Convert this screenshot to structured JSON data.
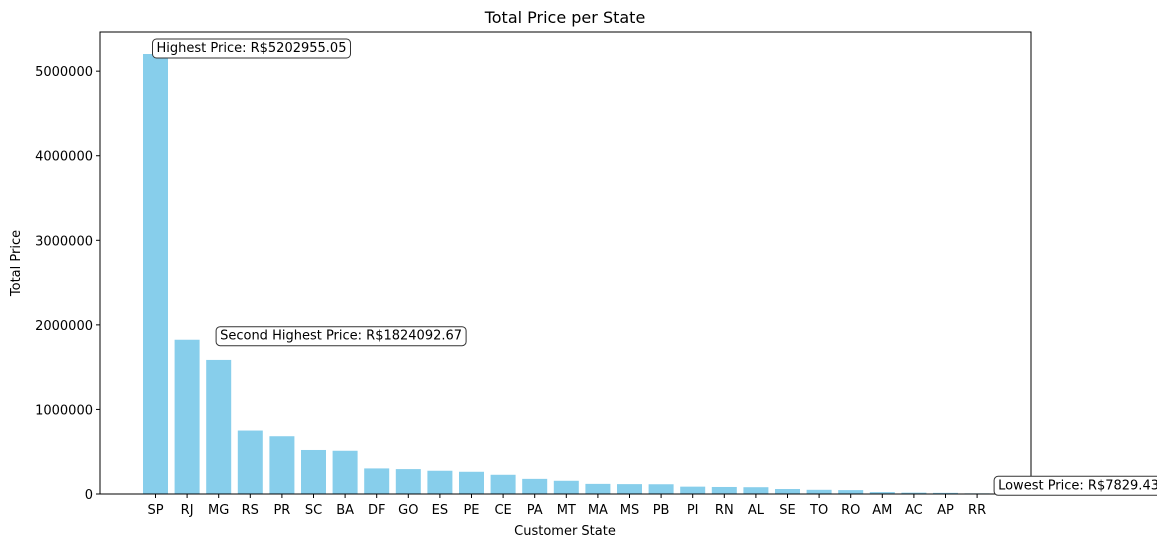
{
  "chart_data": {
    "type": "bar",
    "title": "Total Price per State",
    "xlabel": "Customer State",
    "ylabel": "Total Price",
    "categories": [
      "SP",
      "RJ",
      "MG",
      "RS",
      "PR",
      "SC",
      "BA",
      "DF",
      "GO",
      "ES",
      "PE",
      "CE",
      "PA",
      "MT",
      "MA",
      "MS",
      "PB",
      "PI",
      "RN",
      "AL",
      "SE",
      "TO",
      "RO",
      "AM",
      "AC",
      "AP",
      "RR"
    ],
    "values": [
      5202955.05,
      1824092.67,
      1585308,
      750304,
      683084,
      520553,
      511350,
      302604,
      294592,
      275037,
      262788,
      227255,
      178948,
      156454,
      119648,
      116813,
      115268,
      86914,
      83035,
      80315,
      58921,
      49622,
      46141,
      22357,
      15983,
      13474,
      7829.43
    ],
    "ylim": [
      0,
      5463102.8
    ],
    "yticks": [
      0,
      1000000,
      2000000,
      3000000,
      4000000,
      5000000
    ],
    "bar_color": "#87ceeb",
    "grid": false,
    "annotations": [
      {
        "text": "Highest Price: R$5202955.05",
        "category": "SP",
        "value": 5202955.05
      },
      {
        "text": "Second Highest Price: R$1824092.67",
        "category": "RJ",
        "value": 1824092.67
      },
      {
        "text": "Lowest Price: R$7829.43",
        "category": "RR",
        "value": 7829.43
      }
    ]
  }
}
